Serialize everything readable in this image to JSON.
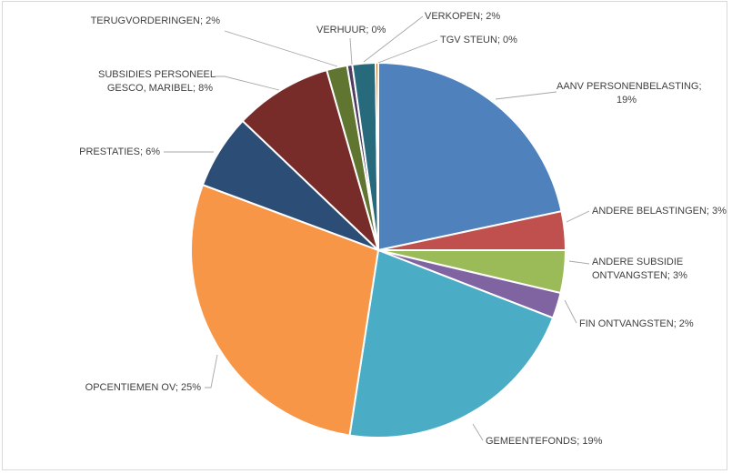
{
  "chart_data": {
    "type": "pie",
    "title": "",
    "slices": [
      {
        "label": "AANV PERSONENBELASTING",
        "percent_label": "19%",
        "value": 19.5,
        "color": "#4f81bd"
      },
      {
        "label": "ANDERE BELASTINGEN",
        "percent_label": "3%",
        "value": 3.0,
        "color": "#c0504d"
      },
      {
        "label": "ANDERE SUBSIDIE ONTVANGSTEN",
        "percent_label": "3%",
        "value": 3.3,
        "color": "#9bbb59"
      },
      {
        "label": "FIN ONTVANGSTEN",
        "percent_label": "2%",
        "value": 2.0,
        "color": "#8064a2"
      },
      {
        "label": "GEMEENTEFONDS",
        "percent_label": "19%",
        "value": 19.4,
        "color": "#4bacc6"
      },
      {
        "label": "OPCENTIEMEN OV",
        "percent_label": "25%",
        "value": 25.4,
        "color": "#f79646"
      },
      {
        "label": "PRESTATIES",
        "percent_label": "6%",
        "value": 5.8,
        "color": "#2c4d75"
      },
      {
        "label": "SUBSIDIES PERSONEEL GESCO, MARIBEL",
        "percent_label": "8%",
        "value": 7.6,
        "color": "#772c2a"
      },
      {
        "label": "TERUGVORDERINGEN",
        "percent_label": "2%",
        "value": 1.6,
        "color": "#5f7530"
      },
      {
        "label": "VERHUUR",
        "percent_label": "0%",
        "value": 0.4,
        "color": "#4d3b62"
      },
      {
        "label": "VERKOPEN",
        "percent_label": "2%",
        "value": 1.8,
        "color": "#276a7c"
      },
      {
        "label": "TGV STEUN",
        "percent_label": "0%",
        "value": 0.2,
        "color": "#b65708"
      }
    ],
    "data_labels": [
      {
        "line1": "AANV PERSONENBELASTING;",
        "line2": "19%"
      },
      {
        "line1": "ANDERE BELASTINGEN; 3%",
        "line2": ""
      },
      {
        "line1": "ANDERE SUBSIDIE",
        "line2": "ONTVANGSTEN; 3%"
      },
      {
        "line1": "FIN ONTVANGSTEN; 2%",
        "line2": ""
      },
      {
        "line1": "GEMEENTEFONDS; 19%",
        "line2": ""
      },
      {
        "line1": "OPCENTIEMEN OV; 25%",
        "line2": ""
      },
      {
        "line1": "PRESTATIES; 6%",
        "line2": ""
      },
      {
        "line1": "SUBSIDIES PERSONEEL",
        "line2": "GESCO, MARIBEL; 8%"
      },
      {
        "line1": "TERUGVORDERINGEN; 2%",
        "line2": ""
      },
      {
        "line1": "VERHUUR; 0%",
        "line2": ""
      },
      {
        "line1": "VERKOPEN; 2%",
        "line2": ""
      },
      {
        "line1": "TGV STEUN; 0%",
        "line2": ""
      }
    ],
    "legend": "none",
    "start_angle_deg": 0,
    "direction": "clockwise"
  }
}
